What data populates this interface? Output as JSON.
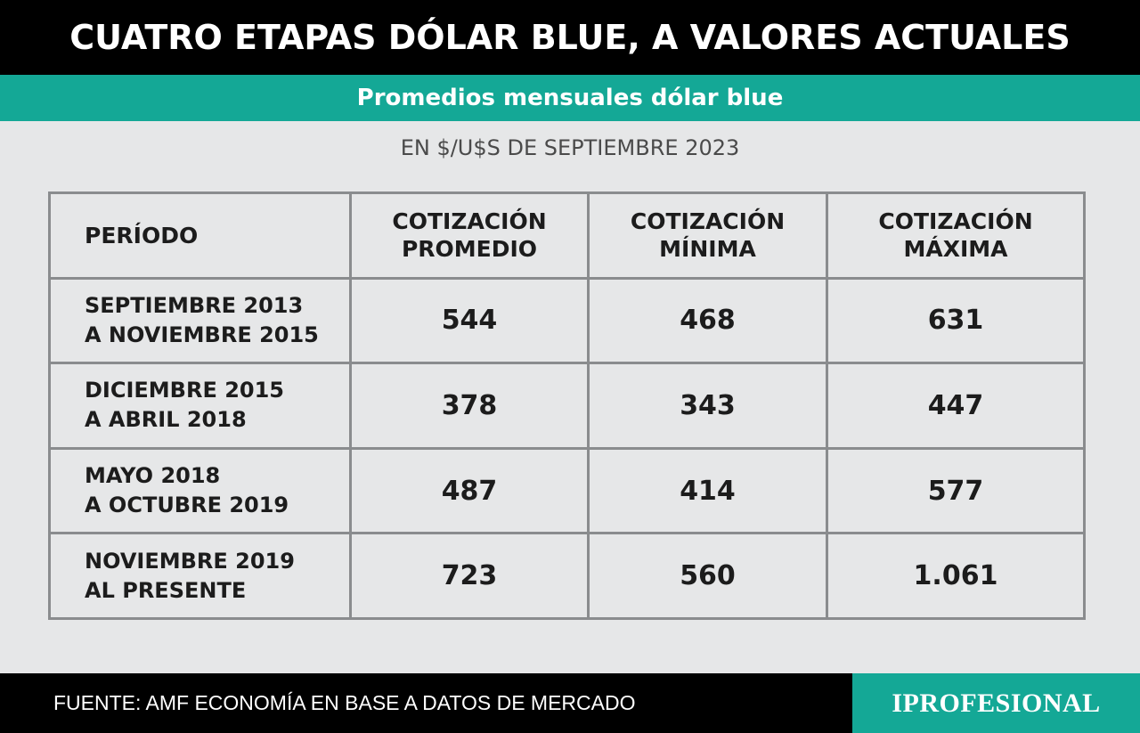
{
  "title": "CUATRO ETAPAS DÓLAR BLUE, A VALORES ACTUALES",
  "subtitle": "Promedios mensuales dólar blue",
  "unit": "EN $/U$S DE SEPTIEMBRE 2023",
  "table": {
    "headers": [
      [
        "PERÍODO"
      ],
      [
        "COTIZACIÓN",
        "PROMEDIO"
      ],
      [
        "COTIZACIÓN",
        "MÍNIMA"
      ],
      [
        "COTIZACIÓN",
        "MÁXIMA"
      ]
    ],
    "rows": [
      {
        "period": [
          "SEPTIEMBRE 2013",
          "A NOVIEMBRE 2015"
        ],
        "promedio": "544",
        "minima": "468",
        "maxima": "631"
      },
      {
        "period": [
          "DICIEMBRE 2015",
          "A ABRIL 2018"
        ],
        "promedio": "378",
        "minima": "343",
        "maxima": "447"
      },
      {
        "period": [
          "MAYO 2018",
          "A OCTUBRE 2019"
        ],
        "promedio": "487",
        "minima": "414",
        "maxima": "577"
      },
      {
        "period": [
          "NOVIEMBRE 2019",
          "AL PRESENTE"
        ],
        "promedio": "723",
        "minima": "560",
        "maxima": "1.061"
      }
    ]
  },
  "footer": {
    "source": "FUENTE: AMF ECONOMÍA EN BASE A DATOS DE MERCADO",
    "brand": "IPROFESIONAL"
  },
  "colors": {
    "title_bg": "#000000",
    "accent": "#14a896",
    "background": "#e6e7e8",
    "grid": "#8a8c8e"
  }
}
